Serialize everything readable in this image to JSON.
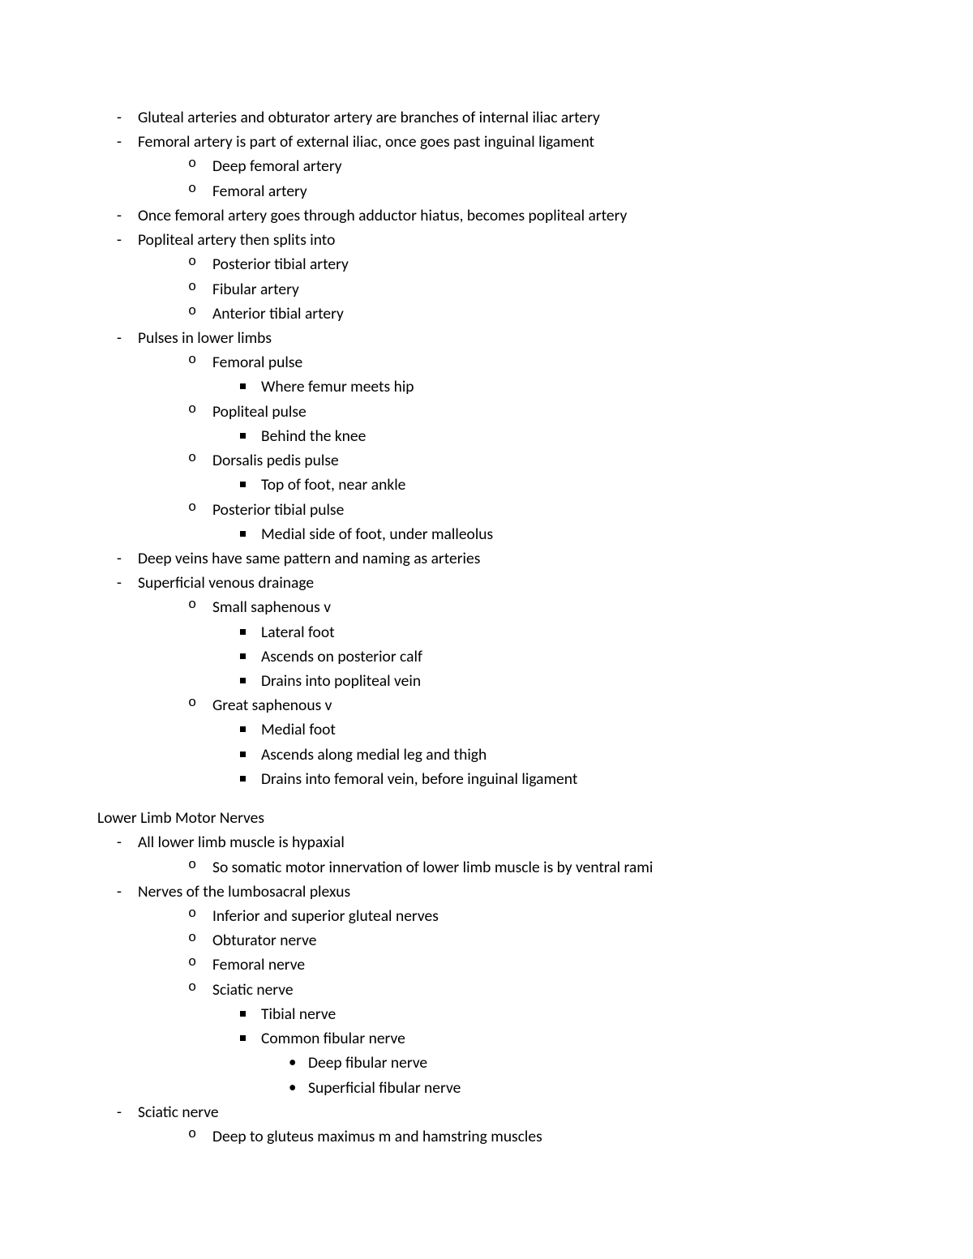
{
  "typography": {
    "font_family": "Calibri",
    "font_size_pt": 14,
    "line_height": 1.55,
    "text_color": "#000000",
    "background_color": "#ffffff"
  },
  "bullets": {
    "level1": "-",
    "level2": "o",
    "level3": "square",
    "level4": "disc"
  },
  "block1": [
    {
      "t": "Gluteal arteries and obturator artery are branches of internal iliac artery"
    },
    {
      "t": "Femoral artery is part of external iliac, once goes past inguinal ligament",
      "c": [
        {
          "t": "Deep femoral artery"
        },
        {
          "t": "Femoral artery"
        }
      ]
    },
    {
      "t": "Once femoral artery goes through adductor hiatus, becomes popliteal artery"
    },
    {
      "t": "Popliteal artery then splits into",
      "c": [
        {
          "t": "Posterior tibial artery"
        },
        {
          "t": "Fibular artery"
        },
        {
          "t": "Anterior tibial artery"
        }
      ]
    },
    {
      "t": "Pulses in lower limbs",
      "c": [
        {
          "t": "Femoral pulse",
          "c": [
            {
              "t": "Where femur meets hip"
            }
          ]
        },
        {
          "t": "Popliteal pulse",
          "c": [
            {
              "t": "Behind the knee"
            }
          ]
        },
        {
          "t": "Dorsalis pedis pulse",
          "c": [
            {
              "t": "Top of foot, near ankle"
            }
          ]
        },
        {
          "t": "Posterior tibial pulse",
          "c": [
            {
              "t": "Medial side of foot, under malleolus"
            }
          ]
        }
      ]
    },
    {
      "t": "Deep veins have same pattern and naming as arteries"
    },
    {
      "t": "Superficial venous drainage",
      "c": [
        {
          "t": "Small saphenous v",
          "c": [
            {
              "t": "Lateral foot"
            },
            {
              "t": "Ascends on posterior calf"
            },
            {
              "t": "Drains into popliteal vein"
            }
          ]
        },
        {
          "t": "Great saphenous v",
          "c": [
            {
              "t": "Medial foot"
            },
            {
              "t": "Ascends along medial leg and thigh"
            },
            {
              "t": "Drains into femoral vein, before inguinal ligament"
            }
          ]
        }
      ]
    }
  ],
  "section_heading": "Lower Limb Motor Nerves",
  "block2": [
    {
      "t": "All lower limb muscle is hypaxial",
      "c": [
        {
          "t": "So somatic motor innervation of lower limb muscle is by ventral rami"
        }
      ]
    },
    {
      "t": "Nerves of the lumbosacral plexus",
      "c": [
        {
          "t": "Inferior and superior gluteal nerves"
        },
        {
          "t": "Obturator nerve"
        },
        {
          "t": "Femoral nerve"
        },
        {
          "t": "Sciatic nerve",
          "c": [
            {
              "t": "Tibial nerve"
            },
            {
              "t": "Common fibular nerve",
              "c": [
                {
                  "t": "Deep fibular nerve"
                },
                {
                  "t": "Superficial fibular nerve"
                }
              ]
            }
          ]
        }
      ]
    },
    {
      "t": "Sciatic nerve",
      "c": [
        {
          "t": "Deep to gluteus maximus m and hamstring muscles"
        }
      ]
    }
  ]
}
